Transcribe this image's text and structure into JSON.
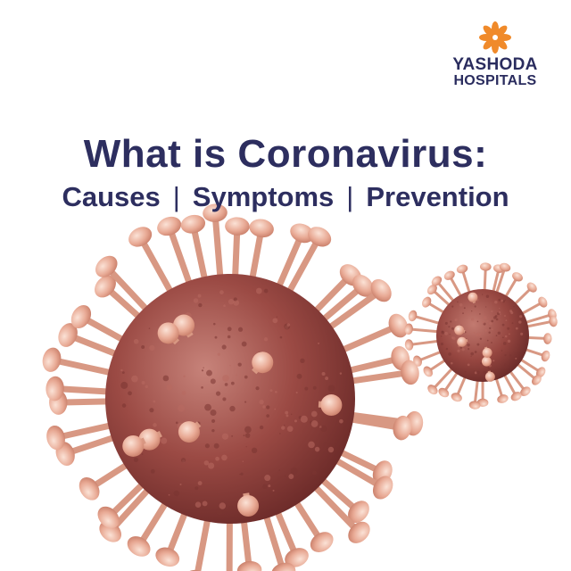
{
  "brand": {
    "line1": "YASHODA",
    "line2": "HOSPITALS",
    "logo_icon": "flower-logo-icon",
    "logo_color": "#f08a2a"
  },
  "headline": "What is Coronavirus:",
  "subline": {
    "parts": [
      "Causes",
      "Symptoms",
      "Prevention"
    ],
    "separator": "|"
  },
  "colors": {
    "text": "#2d2e5f",
    "virus_body": "#9b4a44",
    "spike": "#e3a58e"
  },
  "illustration": {
    "large": "coronavirus-large-icon",
    "small": "coronavirus-small-icon"
  }
}
